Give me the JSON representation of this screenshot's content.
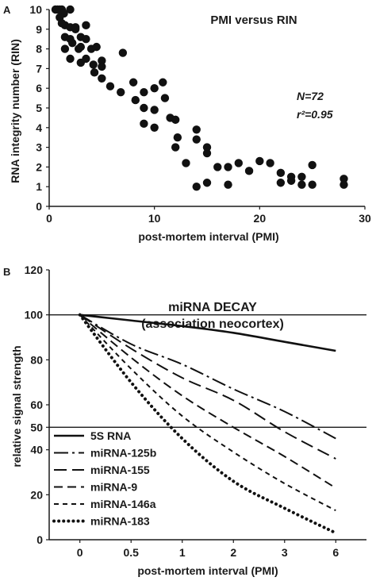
{
  "chart_data": [
    {
      "panel_label": "A",
      "type": "scatter",
      "title": "PMI versus RIN",
      "xlabel": "post-mortem interval (PMI)",
      "ylabel": "RNA integrity number (RIN)",
      "xlim": [
        0,
        30
      ],
      "ylim": [
        0,
        10
      ],
      "xticks": [
        0,
        10,
        20,
        30
      ],
      "yticks": [
        0,
        1,
        2,
        3,
        4,
        5,
        6,
        7,
        8,
        9,
        10
      ],
      "grid": false,
      "annotations": [
        "N=72",
        "r²=0.95"
      ],
      "points": [
        [
          0.6,
          10
        ],
        [
          0.8,
          10
        ],
        [
          1.0,
          10
        ],
        [
          1.2,
          10
        ],
        [
          1.4,
          9.8
        ],
        [
          2.0,
          10
        ],
        [
          1.0,
          9.6
        ],
        [
          1.5,
          9.2
        ],
        [
          2.0,
          9.1
        ],
        [
          2.5,
          9.0
        ],
        [
          1.5,
          8.6
        ],
        [
          2.0,
          8.5
        ],
        [
          3.0,
          8.6
        ],
        [
          3.5,
          9.2
        ],
        [
          4.0,
          8.0
        ],
        [
          1.5,
          8.0
        ],
        [
          2.2,
          8.3
        ],
        [
          2.8,
          8.0
        ],
        [
          3.5,
          8.5
        ],
        [
          4.5,
          8.1
        ],
        [
          2.0,
          7.5
        ],
        [
          3.0,
          7.3
        ],
        [
          3.5,
          7.5
        ],
        [
          4.2,
          7.2
        ],
        [
          5.0,
          7.4
        ],
        [
          4.3,
          6.8
        ],
        [
          5.0,
          7.1
        ],
        [
          7.0,
          7.8
        ],
        [
          5.0,
          6.5
        ],
        [
          5.8,
          6.1
        ],
        [
          6.8,
          5.8
        ],
        [
          8.0,
          6.3
        ],
        [
          9.0,
          5.8
        ],
        [
          10.0,
          6.0
        ],
        [
          10.8,
          6.3
        ],
        [
          8.2,
          5.4
        ],
        [
          9.0,
          5.0
        ],
        [
          10.0,
          4.9
        ],
        [
          11.0,
          5.5
        ],
        [
          11.5,
          4.5
        ],
        [
          12.0,
          4.4
        ],
        [
          12.2,
          3.5
        ],
        [
          12.0,
          3.0
        ],
        [
          9.0,
          4.2
        ],
        [
          10.0,
          4.0
        ],
        [
          13.0,
          2.2
        ],
        [
          14.0,
          3.9
        ],
        [
          14.0,
          3.4
        ],
        [
          15.0,
          3.0
        ],
        [
          15.0,
          2.7
        ],
        [
          14.0,
          1.0
        ],
        [
          15.0,
          1.2
        ],
        [
          16.0,
          2.0
        ],
        [
          17.0,
          2.0
        ],
        [
          17.0,
          1.1
        ],
        [
          18.0,
          2.2
        ],
        [
          19.0,
          1.8
        ],
        [
          20.0,
          2.3
        ],
        [
          21.0,
          2.2
        ],
        [
          22.0,
          1.7
        ],
        [
          22.0,
          1.2
        ],
        [
          23.0,
          1.5
        ],
        [
          23.0,
          1.3
        ],
        [
          24.0,
          1.5
        ],
        [
          24.0,
          1.1
        ],
        [
          25.0,
          2.1
        ],
        [
          25.0,
          1.1
        ],
        [
          28.0,
          1.4
        ],
        [
          28.0,
          1.1
        ],
        [
          2.5,
          9.1
        ],
        [
          1.2,
          9.3
        ],
        [
          3.0,
          8.1
        ]
      ]
    },
    {
      "panel_label": "B",
      "type": "line",
      "title": "miRNA DECAY",
      "subtitle": "(association neocortex)",
      "xlabel": "post-mortem interval (PMI)",
      "ylabel": "relative signal strength",
      "categories": [
        "0",
        "0.5",
        "1",
        "2",
        "3",
        "6"
      ],
      "ylim": [
        0,
        120
      ],
      "yticks": [
        0,
        20,
        40,
        50,
        60,
        80,
        100,
        120
      ],
      "reference_lines": [
        50,
        100
      ],
      "legend_position": "bottom-left",
      "series": [
        {
          "name": "5S RNA",
          "dash": "solid",
          "values": [
            100,
            97.5,
            95,
            92,
            88,
            84
          ]
        },
        {
          "name": "miRNA-125b",
          "dash": "dashdot",
          "values": [
            100,
            87,
            78,
            67,
            57,
            45
          ]
        },
        {
          "name": "miRNA-155",
          "dash": "longdash",
          "values": [
            100,
            85,
            72,
            62,
            48,
            36
          ]
        },
        {
          "name": "miRNA-9",
          "dash": "mediumdash",
          "values": [
            100,
            81,
            64,
            50,
            37,
            23
          ]
        },
        {
          "name": "miRNA-146a",
          "dash": "shortdash",
          "values": [
            100,
            76,
            55,
            39,
            25,
            13
          ]
        },
        {
          "name": "miRNA-183",
          "dash": "dots",
          "values": [
            100,
            70,
            45,
            26,
            14,
            3
          ]
        }
      ]
    }
  ]
}
